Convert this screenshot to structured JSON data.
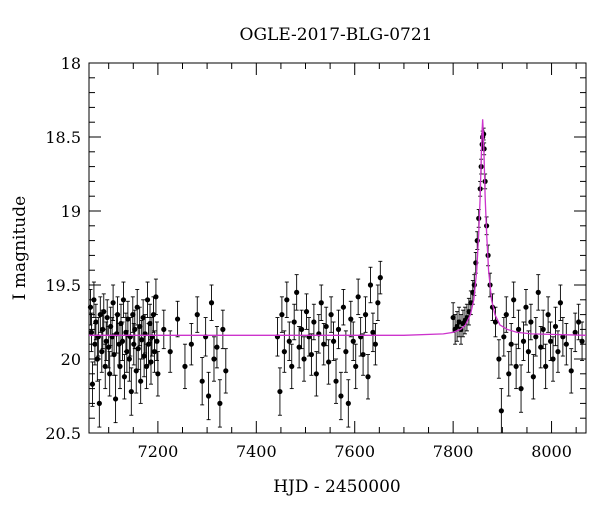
{
  "chart_data": {
    "type": "scatter",
    "title": "OGLE-2017-BLG-0721",
    "xlabel": "HJD - 2450000",
    "ylabel": "I magnitude",
    "xlim": [
      7060,
      8070
    ],
    "ylim": [
      20.5,
      18
    ],
    "y_inverted": true,
    "grid": false,
    "legend": "none",
    "x_ticks": [
      7200,
      7400,
      7600,
      7800,
      8000
    ],
    "y_ticks": [
      18,
      18.5,
      19,
      19.5,
      20,
      20.5
    ],
    "x_tick_labels": [
      "7200",
      "7400",
      "7600",
      "7800",
      "8000"
    ],
    "y_tick_labels": [
      "18",
      "18.5",
      "19",
      "19.5",
      "20",
      "20.5"
    ],
    "model": {
      "type": "line",
      "color": "#cc33cc",
      "baseline": 19.84,
      "peak_time": 7860,
      "peak_mag": 18.38,
      "points": [
        [
          7060,
          19.84
        ],
        [
          7700,
          19.84
        ],
        [
          7780,
          19.83
        ],
        [
          7800,
          19.82
        ],
        [
          7815,
          19.8
        ],
        [
          7825,
          19.77
        ],
        [
          7835,
          19.7
        ],
        [
          7842,
          19.6
        ],
        [
          7848,
          19.4
        ],
        [
          7852,
          19.15
        ],
        [
          7855,
          18.9
        ],
        [
          7857,
          18.65
        ],
        [
          7859,
          18.45
        ],
        [
          7860,
          18.38
        ],
        [
          7861,
          18.45
        ],
        [
          7863,
          18.65
        ],
        [
          7865,
          18.9
        ],
        [
          7868,
          19.15
        ],
        [
          7872,
          19.4
        ],
        [
          7878,
          19.6
        ],
        [
          7885,
          19.7
        ],
        [
          7895,
          19.77
        ],
        [
          7910,
          19.8
        ],
        [
          7930,
          19.82
        ],
        [
          7960,
          19.83
        ],
        [
          8070,
          19.84
        ]
      ]
    },
    "points": [
      [
        7063,
        19.65,
        0.12
      ],
      [
        7065,
        19.82,
        0.13
      ],
      [
        7067,
        20.17,
        0.15
      ],
      [
        7070,
        19.6,
        0.12
      ],
      [
        7072,
        19.9,
        0.14
      ],
      [
        7074,
        19.75,
        0.12
      ],
      [
        7077,
        20.0,
        0.15
      ],
      [
        7079,
        19.85,
        0.13
      ],
      [
        7081,
        20.3,
        0.16
      ],
      [
        7083,
        19.7,
        0.12
      ],
      [
        7086,
        19.95,
        0.14
      ],
      [
        7088,
        19.8,
        0.13
      ],
      [
        7090,
        19.68,
        0.12
      ],
      [
        7093,
        20.05,
        0.15
      ],
      [
        7095,
        19.88,
        0.13
      ],
      [
        7097,
        19.72,
        0.12
      ],
      [
        7100,
        19.92,
        0.14
      ],
      [
        7102,
        20.1,
        0.15
      ],
      [
        7104,
        19.78,
        0.13
      ],
      [
        7107,
        19.85,
        0.13
      ],
      [
        7109,
        19.62,
        0.12
      ],
      [
        7111,
        19.97,
        0.14
      ],
      [
        7114,
        20.27,
        0.16
      ],
      [
        7116,
        19.83,
        0.13
      ],
      [
        7118,
        19.7,
        0.12
      ],
      [
        7121,
        19.9,
        0.14
      ],
      [
        7123,
        20.05,
        0.15
      ],
      [
        7125,
        19.76,
        0.13
      ],
      [
        7128,
        19.88,
        0.13
      ],
      [
        7130,
        19.6,
        0.12
      ],
      [
        7132,
        20.12,
        0.15
      ],
      [
        7135,
        19.82,
        0.13
      ],
      [
        7137,
        19.95,
        0.14
      ],
      [
        7139,
        19.73,
        0.12
      ],
      [
        7142,
        20.0,
        0.15
      ],
      [
        7144,
        19.85,
        0.13
      ],
      [
        7146,
        20.22,
        0.16
      ],
      [
        7149,
        19.7,
        0.12
      ],
      [
        7151,
        19.9,
        0.14
      ],
      [
        7153,
        19.8,
        0.13
      ],
      [
        7156,
        20.08,
        0.15
      ],
      [
        7158,
        19.65,
        0.12
      ],
      [
        7160,
        19.93,
        0.14
      ],
      [
        7163,
        19.78,
        0.13
      ],
      [
        7165,
        20.15,
        0.15
      ],
      [
        7167,
        19.87,
        0.13
      ],
      [
        7170,
        19.72,
        0.12
      ],
      [
        7172,
        19.98,
        0.14
      ],
      [
        7174,
        19.83,
        0.13
      ],
      [
        7177,
        20.05,
        0.15
      ],
      [
        7179,
        19.6,
        0.12
      ],
      [
        7181,
        19.9,
        0.14
      ],
      [
        7184,
        19.76,
        0.13
      ],
      [
        7186,
        20.02,
        0.15
      ],
      [
        7188,
        19.85,
        0.13
      ],
      [
        7191,
        19.7,
        0.12
      ],
      [
        7193,
        19.95,
        0.14
      ],
      [
        7196,
        19.58,
        0.12
      ],
      [
        7198,
        19.88,
        0.13
      ],
      [
        7200,
        20.1,
        0.15
      ],
      [
        7212,
        19.8,
        0.13
      ],
      [
        7225,
        19.95,
        0.14
      ],
      [
        7240,
        19.73,
        0.12
      ],
      [
        7255,
        20.05,
        0.15
      ],
      [
        7268,
        19.9,
        0.14
      ],
      [
        7280,
        19.7,
        0.12
      ],
      [
        7290,
        20.15,
        0.16
      ],
      [
        7297,
        19.85,
        0.13
      ],
      [
        7303,
        20.25,
        0.16
      ],
      [
        7309,
        19.62,
        0.12
      ],
      [
        7314,
        20.0,
        0.15
      ],
      [
        7320,
        19.92,
        0.14
      ],
      [
        7326,
        20.3,
        0.16
      ],
      [
        7332,
        19.8,
        0.13
      ],
      [
        7338,
        20.08,
        0.15
      ],
      [
        7443,
        19.85,
        0.13
      ],
      [
        7448,
        20.22,
        0.16
      ],
      [
        7452,
        19.7,
        0.12
      ],
      [
        7457,
        19.95,
        0.14
      ],
      [
        7462,
        19.6,
        0.12
      ],
      [
        7467,
        19.88,
        0.13
      ],
      [
        7472,
        20.05,
        0.15
      ],
      [
        7477,
        19.75,
        0.12
      ],
      [
        7482,
        19.55,
        0.12
      ],
      [
        7487,
        19.92,
        0.14
      ],
      [
        7492,
        19.8,
        0.13
      ],
      [
        7497,
        20.0,
        0.15
      ],
      [
        7502,
        19.68,
        0.12
      ],
      [
        7507,
        19.85,
        0.13
      ],
      [
        7512,
        19.97,
        0.14
      ],
      [
        7517,
        19.75,
        0.12
      ],
      [
        7522,
        20.1,
        0.15
      ],
      [
        7527,
        19.83,
        0.13
      ],
      [
        7532,
        19.62,
        0.12
      ],
      [
        7537,
        19.9,
        0.14
      ],
      [
        7542,
        19.78,
        0.13
      ],
      [
        7547,
        20.02,
        0.15
      ],
      [
        7552,
        19.7,
        0.12
      ],
      [
        7557,
        19.88,
        0.13
      ],
      [
        7562,
        20.15,
        0.15
      ],
      [
        7567,
        19.8,
        0.13
      ],
      [
        7572,
        20.25,
        0.16
      ],
      [
        7577,
        19.65,
        0.12
      ],
      [
        7582,
        19.95,
        0.14
      ],
      [
        7587,
        20.3,
        0.16
      ],
      [
        7592,
        19.73,
        0.12
      ],
      [
        7597,
        19.88,
        0.13
      ],
      [
        7602,
        20.05,
        0.15
      ],
      [
        7607,
        19.58,
        0.12
      ],
      [
        7612,
        19.85,
        0.13
      ],
      [
        7617,
        19.97,
        0.14
      ],
      [
        7622,
        19.7,
        0.12
      ],
      [
        7627,
        20.12,
        0.15
      ],
      [
        7632,
        19.5,
        0.12
      ],
      [
        7637,
        19.82,
        0.13
      ],
      [
        7642,
        19.9,
        0.14
      ],
      [
        7647,
        19.62,
        0.12
      ],
      [
        7652,
        19.45,
        0.11
      ],
      [
        7800,
        19.72,
        0.1
      ],
      [
        7804,
        19.8,
        0.1
      ],
      [
        7808,
        19.78,
        0.1
      ],
      [
        7812,
        19.75,
        0.1
      ],
      [
        7816,
        19.8,
        0.1
      ],
      [
        7820,
        19.76,
        0.09
      ],
      [
        7824,
        19.74,
        0.09
      ],
      [
        7828,
        19.72,
        0.09
      ],
      [
        7832,
        19.68,
        0.09
      ],
      [
        7836,
        19.62,
        0.08
      ],
      [
        7840,
        19.55,
        0.08
      ],
      [
        7843,
        19.5,
        0.07
      ],
      [
        7846,
        19.35,
        0.07
      ],
      [
        7849,
        19.2,
        0.06
      ],
      [
        7852,
        19.05,
        0.06
      ],
      [
        7855,
        18.85,
        0.05
      ],
      [
        7857,
        18.7,
        0.05
      ],
      [
        7859,
        18.55,
        0.04
      ],
      [
        7860,
        18.5,
        0.04
      ],
      [
        7862,
        18.48,
        0.04
      ],
      [
        7863,
        18.58,
        0.04
      ],
      [
        7865,
        18.8,
        0.05
      ],
      [
        7868,
        19.1,
        0.06
      ],
      [
        7871,
        19.3,
        0.07
      ],
      [
        7875,
        19.5,
        0.08
      ],
      [
        7880,
        19.65,
        0.09
      ],
      [
        7886,
        19.75,
        0.1
      ],
      [
        7893,
        20.0,
        0.13
      ],
      [
        7898,
        20.35,
        0.15
      ],
      [
        7903,
        19.85,
        0.13
      ],
      [
        7908,
        19.7,
        0.12
      ],
      [
        7913,
        20.1,
        0.15
      ],
      [
        7918,
        19.9,
        0.14
      ],
      [
        7923,
        19.6,
        0.12
      ],
      [
        7928,
        20.05,
        0.15
      ],
      [
        7933,
        19.8,
        0.13
      ],
      [
        7938,
        20.2,
        0.16
      ],
      [
        7943,
        19.88,
        0.13
      ],
      [
        7948,
        19.65,
        0.12
      ],
      [
        7953,
        19.95,
        0.14
      ],
      [
        7958,
        19.75,
        0.12
      ],
      [
        7963,
        20.12,
        0.15
      ],
      [
        7968,
        19.85,
        0.13
      ],
      [
        7973,
        19.55,
        0.12
      ],
      [
        7978,
        19.92,
        0.14
      ],
      [
        7983,
        19.8,
        0.13
      ],
      [
        7988,
        20.05,
        0.15
      ],
      [
        7993,
        19.7,
        0.12
      ],
      [
        7998,
        19.88,
        0.13
      ],
      [
        8003,
        20.0,
        0.15
      ],
      [
        8008,
        19.78,
        0.13
      ],
      [
        8013,
        19.95,
        0.14
      ],
      [
        8018,
        19.62,
        0.12
      ],
      [
        8023,
        19.85,
        0.13
      ],
      [
        8030,
        19.9,
        0.14
      ],
      [
        8040,
        20.08,
        0.15
      ],
      [
        8048,
        19.82,
        0.13
      ],
      [
        8055,
        19.75,
        0.12
      ],
      [
        8062,
        19.88,
        0.13
      ]
    ]
  }
}
